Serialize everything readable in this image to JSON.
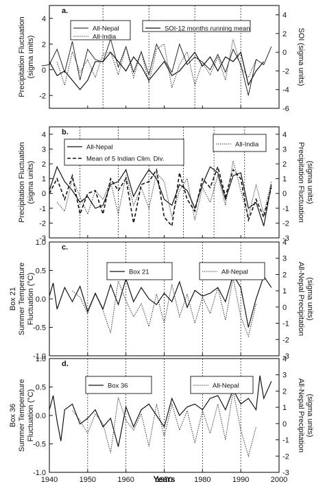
{
  "chart_data": [
    {
      "panel": "a.",
      "type": "line",
      "ylabel": "Precipitation Fluctuation\n(sigma units)",
      "y2label": "SOI (sigma units)",
      "ylim": [
        -3,
        5
      ],
      "y2lim": [
        -6,
        5
      ],
      "yticks": [
        -2,
        0,
        2,
        4
      ],
      "y2ticks": [
        -6,
        -4,
        -2,
        0,
        2,
        4
      ],
      "xlim": [
        1940,
        2000
      ],
      "vlines": [
        1954,
        1966,
        1978,
        1990
      ],
      "legend": [
        "All-Nepal",
        "All-India",
        "SOI-12 months running mean"
      ],
      "series": [
        {
          "name": "All-Nepal",
          "axis": "left",
          "style": "thin-solid",
          "x": [
            1938,
            1940,
            1942,
            1944,
            1946,
            1948,
            1950,
            1952,
            1954,
            1956,
            1958,
            1960,
            1962,
            1964,
            1966,
            1968,
            1970,
            1972,
            1974,
            1976,
            1978,
            1980,
            1982,
            1984,
            1986,
            1988,
            1990,
            1992,
            1994,
            1996,
            1998
          ],
          "values": [
            0.3,
            0.4,
            1.6,
            -0.2,
            2.2,
            -0.8,
            1.6,
            0.8,
            0.6,
            2.4,
            0.2,
            1.8,
            -0.2,
            1.4,
            -0.4,
            2.0,
            0.8,
            -0.2,
            2.0,
            0.4,
            1.0,
            0.6,
            0.0,
            1.2,
            -0.2,
            1.6,
            0.4,
            -2.0,
            0.8,
            0.4,
            1.8
          ]
        },
        {
          "name": "All-India",
          "axis": "left",
          "style": "dotted",
          "x": [
            1942,
            1944,
            1946,
            1948,
            1950,
            1952,
            1954,
            1956,
            1958,
            1960,
            1962,
            1964,
            1966,
            1968,
            1970,
            1972,
            1974,
            1976,
            1978,
            1980,
            1982,
            1984,
            1986,
            1988,
            1990,
            1992,
            1994
          ],
          "values": [
            0.6,
            -1.2,
            1.4,
            -0.2,
            0.8,
            -0.6,
            1.2,
            1.4,
            -0.4,
            1.8,
            -0.6,
            1.4,
            -1.0,
            1.6,
            2.0,
            -1.4,
            0.4,
            1.4,
            -1.2,
            0.6,
            -0.4,
            1.0,
            -0.8,
            2.4,
            0.2,
            -0.6,
            0.8
          ]
        },
        {
          "name": "SOI-12 months running mean",
          "axis": "right",
          "style": "solid",
          "x": [
            1940,
            1942,
            1944,
            1946,
            1948,
            1950,
            1952,
            1954,
            1956,
            1958,
            1960,
            1962,
            1964,
            1966,
            1968,
            1970,
            1972,
            1974,
            1976,
            1978,
            1980,
            1982,
            1984,
            1986,
            1988,
            1990,
            1992,
            1994,
            1996
          ],
          "values": [
            -1.0,
            -2.5,
            -2.0,
            -3.0,
            -4.0,
            -3.0,
            -1.0,
            -1.0,
            0.0,
            -1.0,
            -2.0,
            -0.5,
            -1.5,
            -3.0,
            -2.0,
            -1.0,
            -2.5,
            -2.0,
            -1.0,
            0.0,
            -1.5,
            -0.5,
            -2.0,
            -0.5,
            -1.0,
            0.0,
            -3.5,
            -2.0,
            -1.0
          ]
        }
      ]
    },
    {
      "panel": "b.",
      "type": "line",
      "ylabel": "Precipitation Fluctuation\n(sigma units)",
      "y2label": "Precipitation Fluctuation\n(sigma units)",
      "ylim": [
        -3,
        4.5
      ],
      "y2lim": [
        -3,
        4.5
      ],
      "yticks": [
        -3,
        -2,
        -1,
        0,
        1,
        2,
        3,
        4
      ],
      "y2ticks": [
        -3,
        -2,
        -1,
        0,
        1,
        2,
        3,
        4
      ],
      "xlim": [
        1940,
        2000
      ],
      "vlines": [
        1948,
        1958,
        1966,
        1975,
        1983,
        1991
      ],
      "legend": [
        "All-Nepal",
        "Mean of 5 Indian Clim. Div.",
        "All-India"
      ],
      "series": [
        {
          "name": "All-Nepal",
          "axis": "left",
          "style": "solid",
          "x": [
            1940,
            1942,
            1944,
            1946,
            1948,
            1950,
            1952,
            1954,
            1956,
            1958,
            1960,
            1962,
            1964,
            1966,
            1968,
            1970,
            1972,
            1974,
            1976,
            1978,
            1980,
            1982,
            1984,
            1986,
            1988,
            1990,
            1992,
            1994,
            1996,
            1998
          ],
          "values": [
            0.2,
            1.8,
            0.8,
            0.2,
            -0.6,
            -0.2,
            -1.0,
            -0.8,
            0.6,
            0.8,
            1.6,
            -0.2,
            0.8,
            1.6,
            1.0,
            -0.4,
            -0.8,
            0.6,
            0.2,
            -1.0,
            0.6,
            1.8,
            1.4,
            -0.4,
            1.2,
            1.4,
            -1.0,
            -0.6,
            -2.2,
            0.6
          ]
        },
        {
          "name": "Mean of 5 Indian Clim. Div.",
          "axis": "left",
          "style": "dashed",
          "x": [
            1940,
            1942,
            1944,
            1946,
            1948,
            1950,
            1952,
            1954,
            1956,
            1958,
            1960,
            1962,
            1964,
            1966,
            1968,
            1970,
            1972,
            1974,
            1976,
            1978,
            1980,
            1982,
            1984,
            1986,
            1988,
            1990,
            1992,
            1994,
            1996,
            1998
          ],
          "values": [
            0.0,
            1.0,
            -0.4,
            1.2,
            -1.4,
            0.0,
            0.2,
            -1.4,
            1.0,
            0.2,
            1.0,
            -2.0,
            0.6,
            0.8,
            1.6,
            -1.6,
            -2.2,
            1.4,
            -0.4,
            -1.2,
            1.0,
            0.4,
            1.8,
            -0.2,
            1.6,
            1.0,
            -1.8,
            -0.4,
            -1.6,
            0.4
          ]
        },
        {
          "name": "All-India",
          "axis": "right",
          "style": "dotted",
          "x": [
            1942,
            1944,
            1946,
            1948,
            1950,
            1952,
            1954,
            1956,
            1958,
            1960,
            1962,
            1964,
            1966,
            1968,
            1970,
            1972,
            1974,
            1976,
            1978,
            1980,
            1982,
            1984,
            1986,
            1988,
            1990,
            1992,
            1994,
            1996,
            1998
          ],
          "values": [
            -0.6,
            -1.2,
            1.0,
            -0.2,
            -1.4,
            0.2,
            -0.4,
            0.8,
            -1.4,
            1.2,
            -0.8,
            0.4,
            -1.0,
            1.4,
            0.8,
            -1.6,
            0.2,
            1.0,
            -1.8,
            0.4,
            -0.6,
            1.2,
            -0.8,
            2.2,
            0.2,
            -1.6,
            0.6,
            -1.4,
            0.8
          ]
        }
      ]
    },
    {
      "panel": "c.",
      "type": "line",
      "ylabel": "Box 21\nSummer Temperature\nFluctuation (°C)",
      "y2label": "All-Nepal Precipitation\n(sigma units)",
      "ylim": [
        -1.0,
        1.0
      ],
      "y2lim": [
        -3,
        4
      ],
      "yticks": [
        -1.0,
        -0.5,
        0.0,
        0.5,
        1.0
      ],
      "y2ticks": [
        -3,
        -2,
        -1,
        0,
        1,
        2,
        3,
        4
      ],
      "xlim": [
        1940,
        2000
      ],
      "vlines": [
        1950,
        1960,
        1970,
        1980,
        1990
      ],
      "legend": [
        "Box 21",
        "All-Nepal"
      ],
      "series": [
        {
          "name": "Box 21",
          "axis": "left",
          "style": "solid",
          "x": [
            1940,
            1941,
            1942,
            1944,
            1946,
            1948,
            1950,
            1952,
            1954,
            1956,
            1958,
            1960,
            1962,
            1964,
            1966,
            1968,
            1970,
            1972,
            1974,
            1976,
            1978,
            1980,
            1982,
            1984,
            1986,
            1988,
            1990,
            1992,
            1994,
            1996,
            1998
          ],
          "values": [
            0.05,
            0.28,
            -0.18,
            0.2,
            -0.05,
            0.22,
            -0.22,
            0.1,
            -0.18,
            0.25,
            -0.1,
            0.35,
            -0.05,
            0.2,
            0.0,
            -0.1,
            0.1,
            -0.05,
            0.3,
            -0.15,
            0.15,
            0.05,
            0.1,
            0.2,
            -0.05,
            0.42,
            0.2,
            -0.5,
            0.0,
            0.4,
            0.2
          ]
        },
        {
          "name": "All-Nepal",
          "axis": "right",
          "style": "dotted",
          "x": [
            1946,
            1948,
            1950,
            1952,
            1954,
            1956,
            1958,
            1960,
            1962,
            1964,
            1966,
            1968,
            1970,
            1972,
            1974,
            1976,
            1978,
            1980,
            1982,
            1984,
            1986,
            1988,
            1990,
            1992,
            1994
          ],
          "values": [
            1.0,
            0.6,
            -0.4,
            0.8,
            -0.2,
            -1.6,
            1.6,
            0.4,
            -0.6,
            0.2,
            -1.2,
            0.8,
            -1.0,
            1.4,
            -0.6,
            0.8,
            -1.0,
            0.6,
            -0.4,
            1.2,
            -0.8,
            1.8,
            -0.6,
            -1.8,
            0.2
          ]
        }
      ]
    },
    {
      "panel": "d.",
      "type": "line",
      "ylabel": "Box 36\nSummer Temperature\nFluctuation (°C)",
      "y2label": "All-Nepal Precipitation\n(sigma units)",
      "xlabel": "Years",
      "ylim": [
        -1.0,
        1.0
      ],
      "y2lim": [
        -3,
        4
      ],
      "yticks": [
        -1.0,
        -0.5,
        0.0,
        0.5,
        1.0
      ],
      "y2ticks": [
        -3,
        -2,
        -1,
        0,
        1,
        2,
        3,
        4
      ],
      "xlim": [
        1940,
        2000
      ],
      "xticks": [
        1940,
        1950,
        1960,
        1970,
        1980,
        1990,
        2000
      ],
      "vlines": [
        1950,
        1960,
        1970,
        1980,
        1990
      ],
      "legend": [
        "Box 36",
        "All-Nepal"
      ],
      "series": [
        {
          "name": "Box 36",
          "axis": "left",
          "style": "solid",
          "x": [
            1940,
            1941,
            1942,
            1943,
            1944,
            1946,
            1948,
            1950,
            1952,
            1954,
            1956,
            1958,
            1960,
            1962,
            1964,
            1966,
            1968,
            1970,
            1972,
            1974,
            1976,
            1978,
            1980,
            1982,
            1984,
            1986,
            1988,
            1990,
            1992,
            1994,
            1995,
            1996,
            1998
          ],
          "values": [
            0.1,
            0.35,
            -0.1,
            -0.45,
            0.1,
            0.2,
            -0.15,
            -0.05,
            0.1,
            -0.2,
            -0.05,
            -0.55,
            0.15,
            -0.2,
            0.1,
            0.2,
            0.0,
            -0.2,
            0.3,
            0.0,
            0.15,
            0.2,
            0.1,
            0.3,
            0.35,
            0.1,
            0.45,
            0.2,
            0.3,
            0.1,
            0.7,
            0.3,
            0.6
          ]
        },
        {
          "name": "All-Nepal",
          "axis": "right",
          "style": "dotted",
          "x": [
            1946,
            1948,
            1950,
            1952,
            1954,
            1956,
            1958,
            1960,
            1962,
            1964,
            1966,
            1968,
            1970,
            1972,
            1974,
            1976,
            1978,
            1980,
            1982,
            1984,
            1986,
            1988,
            1990,
            1992,
            1994
          ],
          "values": [
            0.8,
            0.2,
            -0.6,
            0.6,
            0.0,
            -1.8,
            1.6,
            0.2,
            -0.4,
            0.6,
            -1.4,
            1.2,
            -0.8,
            1.2,
            -0.4,
            0.8,
            -1.2,
            0.8,
            -0.6,
            1.2,
            -1.0,
            2.0,
            -0.4,
            -2.0,
            -0.2
          ]
        }
      ]
    }
  ]
}
